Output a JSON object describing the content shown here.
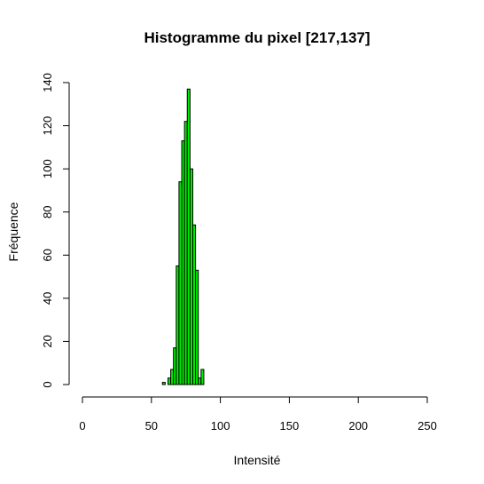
{
  "chart_data": {
    "type": "bar",
    "title": "Histogramme du pixel [217,137]",
    "xlabel": "Intensité",
    "ylabel": "Fréquence",
    "xlim": [
      0,
      250
    ],
    "ylim": [
      0,
      140
    ],
    "x_ticks": [
      "0",
      "50",
      "100",
      "150",
      "200",
      "250"
    ],
    "y_ticks": [
      "0",
      "20",
      "40",
      "60",
      "80",
      "100",
      "120",
      "140"
    ],
    "bar_color": "#00ee00",
    "bin_width": 2,
    "bins": [
      {
        "start": 58,
        "value": 1
      },
      {
        "start": 60,
        "value": 0
      },
      {
        "start": 62,
        "value": 3
      },
      {
        "start": 64,
        "value": 7
      },
      {
        "start": 66,
        "value": 17
      },
      {
        "start": 68,
        "value": 55
      },
      {
        "start": 70,
        "value": 94
      },
      {
        "start": 72,
        "value": 113
      },
      {
        "start": 74,
        "value": 122
      },
      {
        "start": 76,
        "value": 137
      },
      {
        "start": 78,
        "value": 100
      },
      {
        "start": 80,
        "value": 74
      },
      {
        "start": 82,
        "value": 53
      },
      {
        "start": 84,
        "value": 3
      },
      {
        "start": 86,
        "value": 7
      }
    ]
  }
}
